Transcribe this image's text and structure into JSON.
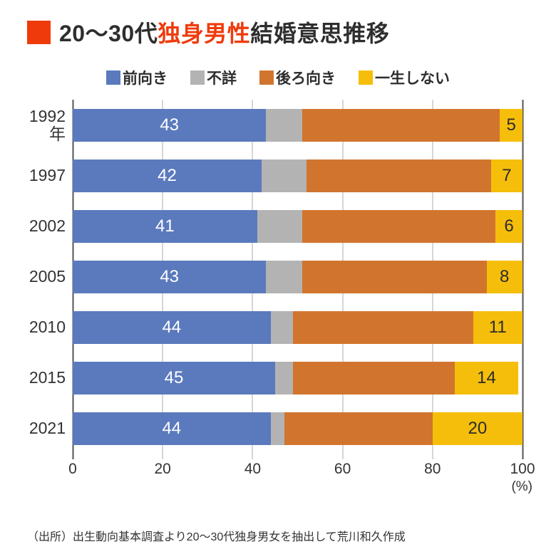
{
  "colors": {
    "accent_red": "#EF3B0C",
    "grid": "#AEAEAE",
    "grid_major": "#555555",
    "text": "#2E2E2E"
  },
  "title": {
    "prefix": "20〜30代",
    "highlight": "独身男性",
    "suffix": "結婚意思推移"
  },
  "legend": [
    {
      "label": "前向き",
      "color": "#5B7ABD"
    },
    {
      "label": "不詳",
      "color": "#B3B3B3"
    },
    {
      "label": "後ろ向き",
      "color": "#D1752E"
    },
    {
      "label": "一生しない",
      "color": "#F5BE0B"
    }
  ],
  "chart_data": {
    "type": "bar",
    "stacked": true,
    "orientation": "horizontal",
    "title": "20〜30代独身男性結婚意思推移",
    "categories": [
      {
        "label": "1992",
        "unit": "年"
      },
      {
        "label": "1997",
        "unit": ""
      },
      {
        "label": "2002",
        "unit": ""
      },
      {
        "label": "2005",
        "unit": ""
      },
      {
        "label": "2010",
        "unit": ""
      },
      {
        "label": "2015",
        "unit": ""
      },
      {
        "label": "2021",
        "unit": ""
      }
    ],
    "series": [
      {
        "name": "前向き",
        "color": "#5B7ABD",
        "values": [
          43,
          42,
          41,
          43,
          44,
          45,
          44
        ],
        "value_labels": "white"
      },
      {
        "name": "不詳",
        "color": "#B3B3B3",
        "values": [
          8,
          10,
          10,
          8,
          5,
          4,
          3
        ],
        "value_labels": "none"
      },
      {
        "name": "後ろ向き",
        "color": "#D1752E",
        "values": [
          44,
          41,
          43,
          41,
          40,
          36,
          33
        ],
        "value_labels": "none"
      },
      {
        "name": "一生しない",
        "color": "#F5BE0B",
        "values": [
          5,
          7,
          6,
          8,
          11,
          14,
          20
        ],
        "value_labels": "dark"
      }
    ],
    "xlim": [
      0,
      100
    ],
    "x_ticks": [
      0,
      20,
      40,
      60,
      80,
      100
    ],
    "x_unit": "(%)",
    "grid": true,
    "legend_position": "top"
  },
  "source": "（出所）出生動向基本調査より20〜30代独身男女を抽出して荒川和久作成"
}
